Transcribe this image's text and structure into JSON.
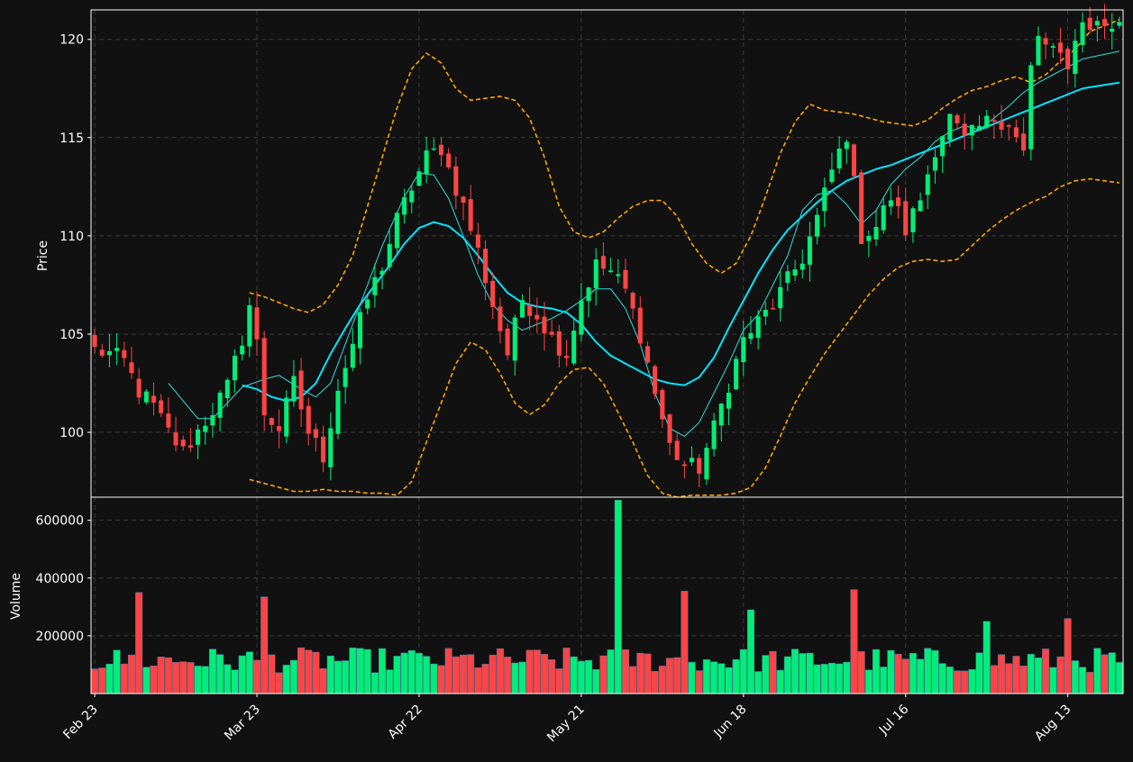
{
  "colors": {
    "background": "#111111",
    "up": "#00ee77",
    "down": "#ff4444",
    "grid": "#3a3a3a",
    "frame": "#ffffff",
    "ma_fast": "#33dddd",
    "ma_slow": "#00e5ff",
    "bands": "#ffa500"
  },
  "chart_data": {
    "type": "candlestick",
    "price_panel": {
      "ylabel": "Price",
      "ylim": [
        96.7,
        121.5
      ],
      "yticks": [
        100,
        105,
        110,
        115,
        120
      ],
      "grid": true
    },
    "volume_panel": {
      "ylabel": "Volume",
      "ylim": [
        0,
        680000
      ],
      "yticks": [
        200000,
        400000,
        600000
      ],
      "grid": true
    },
    "x_tick_labels": [
      "Feb 23",
      "Mar 23",
      "Apr 22",
      "May 21",
      "Jun 18",
      "Jul 16",
      "Aug 13"
    ],
    "x_tick_index": [
      0,
      22,
      44,
      66,
      88,
      110,
      132
    ],
    "n_bars": 140,
    "close_anchors": [
      [
        0,
        104.2
      ],
      [
        2,
        104.0
      ],
      [
        4,
        103.6
      ],
      [
        6,
        102.1
      ],
      [
        8,
        101.3
      ],
      [
        10,
        100.0
      ],
      [
        12,
        99.0
      ],
      [
        15,
        100.6
      ],
      [
        18,
        102.3
      ],
      [
        20,
        104.8
      ],
      [
        21,
        106.5
      ],
      [
        22,
        104.5
      ],
      [
        23,
        101.0
      ],
      [
        25,
        100.2
      ],
      [
        27,
        102.5
      ],
      [
        29,
        100.0
      ],
      [
        31,
        98.8
      ],
      [
        33,
        102.3
      ],
      [
        35,
        104.5
      ],
      [
        37,
        106.8
      ],
      [
        39,
        108.5
      ],
      [
        41,
        110.8
      ],
      [
        43,
        112.5
      ],
      [
        45,
        114.0
      ],
      [
        47,
        114.5
      ],
      [
        48,
        113.4
      ],
      [
        50,
        111.5
      ],
      [
        52,
        109.2
      ],
      [
        54,
        106.5
      ],
      [
        56,
        104.0
      ],
      [
        58,
        106.8
      ],
      [
        60,
        106.0
      ],
      [
        62,
        104.8
      ],
      [
        64,
        104.0
      ],
      [
        66,
        106.8
      ],
      [
        68,
        108.5
      ],
      [
        70,
        108.2
      ],
      [
        72,
        107.2
      ],
      [
        74,
        105.0
      ],
      [
        76,
        102.0
      ],
      [
        78,
        99.3
      ],
      [
        80,
        98.3
      ],
      [
        82,
        98.2
      ],
      [
        84,
        100.2
      ],
      [
        86,
        102.5
      ],
      [
        88,
        104.7
      ],
      [
        90,
        105.6
      ],
      [
        92,
        106.5
      ],
      [
        94,
        107.7
      ],
      [
        96,
        108.9
      ],
      [
        98,
        110.9
      ],
      [
        100,
        113.3
      ],
      [
        102,
        115.2
      ],
      [
        104,
        110.0
      ],
      [
        106,
        110.5
      ],
      [
        108,
        112.0
      ],
      [
        110,
        110.3
      ],
      [
        112,
        111.9
      ],
      [
        114,
        114.5
      ],
      [
        116,
        116.0
      ],
      [
        118,
        114.8
      ],
      [
        120,
        115.5
      ],
      [
        122,
        116.0
      ],
      [
        124,
        115.8
      ],
      [
        126,
        114.2
      ],
      [
        127,
        118.5
      ],
      [
        128,
        120.0
      ],
      [
        130,
        119.5
      ],
      [
        132,
        118.3
      ],
      [
        133,
        120.3
      ],
      [
        134,
        120.8
      ],
      [
        139,
        120.7
      ]
    ],
    "ma_fast_anchors": [
      [
        10,
        102.5
      ],
      [
        14,
        100.7
      ],
      [
        16,
        100.7
      ],
      [
        20,
        102.3
      ],
      [
        23,
        102.7
      ],
      [
        25,
        102.9
      ],
      [
        28,
        102.2
      ],
      [
        30,
        101.8
      ],
      [
        32,
        102.5
      ],
      [
        34,
        104.5
      ],
      [
        36,
        106.5
      ],
      [
        39,
        109.5
      ],
      [
        42,
        112.0
      ],
      [
        44,
        113.2
      ],
      [
        46,
        113.1
      ],
      [
        48,
        111.9
      ],
      [
        50,
        110.0
      ],
      [
        52,
        108.0
      ],
      [
        54,
        106.5
      ],
      [
        56,
        105.7
      ],
      [
        58,
        105.2
      ],
      [
        60,
        105.5
      ],
      [
        62,
        105.8
      ],
      [
        64,
        106.2
      ],
      [
        66,
        106.7
      ],
      [
        68,
        107.3
      ],
      [
        70,
        107.3
      ],
      [
        72,
        106.3
      ],
      [
        74,
        104.5
      ],
      [
        76,
        102.0
      ],
      [
        78,
        100.2
      ],
      [
        80,
        99.8
      ],
      [
        82,
        100.5
      ],
      [
        84,
        102.0
      ],
      [
        86,
        103.5
      ],
      [
        88,
        105.2
      ],
      [
        90,
        106.0
      ],
      [
        92,
        107.5
      ],
      [
        94,
        109.0
      ],
      [
        96,
        111.3
      ],
      [
        98,
        112.1
      ],
      [
        100,
        112.3
      ],
      [
        102,
        111.6
      ],
      [
        104,
        110.6
      ],
      [
        106,
        111.3
      ],
      [
        108,
        112.6
      ],
      [
        110,
        113.4
      ],
      [
        112,
        114.0
      ],
      [
        114,
        114.8
      ],
      [
        116,
        115.3
      ],
      [
        118,
        115.6
      ],
      [
        120,
        115.4
      ],
      [
        122,
        116.0
      ],
      [
        124,
        116.6
      ],
      [
        126,
        117.3
      ],
      [
        128,
        117.8
      ],
      [
        130,
        118.2
      ],
      [
        132,
        118.6
      ],
      [
        134,
        119.0
      ],
      [
        139,
        119.4
      ]
    ],
    "ma_slow_anchors": [
      [
        20,
        102.4
      ],
      [
        22,
        102.2
      ],
      [
        24,
        101.8
      ],
      [
        26,
        101.6
      ],
      [
        28,
        101.8
      ],
      [
        30,
        102.5
      ],
      [
        32,
        104.0
      ],
      [
        34,
        105.3
      ],
      [
        36,
        106.5
      ],
      [
        38,
        107.5
      ],
      [
        40,
        108.5
      ],
      [
        42,
        109.6
      ],
      [
        44,
        110.4
      ],
      [
        46,
        110.7
      ],
      [
        48,
        110.5
      ],
      [
        50,
        109.9
      ],
      [
        52,
        109.0
      ],
      [
        54,
        108.0
      ],
      [
        56,
        107.1
      ],
      [
        58,
        106.6
      ],
      [
        60,
        106.4
      ],
      [
        62,
        106.3
      ],
      [
        64,
        106.1
      ],
      [
        66,
        105.5
      ],
      [
        68,
        104.6
      ],
      [
        70,
        103.9
      ],
      [
        72,
        103.5
      ],
      [
        74,
        103.1
      ],
      [
        76,
        102.7
      ],
      [
        78,
        102.5
      ],
      [
        80,
        102.4
      ],
      [
        82,
        102.8
      ],
      [
        84,
        103.8
      ],
      [
        86,
        105.3
      ],
      [
        88,
        106.7
      ],
      [
        90,
        108.1
      ],
      [
        92,
        109.3
      ],
      [
        94,
        110.3
      ],
      [
        96,
        111.0
      ],
      [
        98,
        111.7
      ],
      [
        100,
        112.3
      ],
      [
        102,
        112.8
      ],
      [
        104,
        113.1
      ],
      [
        106,
        113.4
      ],
      [
        108,
        113.6
      ],
      [
        110,
        113.9
      ],
      [
        112,
        114.2
      ],
      [
        114,
        114.5
      ],
      [
        116,
        114.8
      ],
      [
        118,
        115.1
      ],
      [
        120,
        115.4
      ],
      [
        122,
        115.7
      ],
      [
        124,
        116.0
      ],
      [
        126,
        116.3
      ],
      [
        128,
        116.6
      ],
      [
        130,
        116.9
      ],
      [
        132,
        117.2
      ],
      [
        134,
        117.5
      ],
      [
        139,
        117.8
      ]
    ],
    "upper_band_anchors": [
      [
        21,
        107.1
      ],
      [
        23,
        106.9
      ],
      [
        25,
        106.6
      ],
      [
        27,
        106.3
      ],
      [
        29,
        106.1
      ],
      [
        31,
        106.5
      ],
      [
        33,
        107.5
      ],
      [
        35,
        109.0
      ],
      [
        37,
        111.5
      ],
      [
        39,
        114.0
      ],
      [
        41,
        116.5
      ],
      [
        43,
        118.5
      ],
      [
        45,
        119.3
      ],
      [
        47,
        118.8
      ],
      [
        49,
        117.5
      ],
      [
        51,
        116.9
      ],
      [
        53,
        117.0
      ],
      [
        55,
        117.1
      ],
      [
        57,
        116.9
      ],
      [
        59,
        116.0
      ],
      [
        61,
        114.0
      ],
      [
        63,
        111.5
      ],
      [
        65,
        110.2
      ],
      [
        67,
        109.9
      ],
      [
        69,
        110.2
      ],
      [
        71,
        110.9
      ],
      [
        73,
        111.5
      ],
      [
        75,
        111.8
      ],
      [
        77,
        111.8
      ],
      [
        79,
        111.0
      ],
      [
        81,
        109.6
      ],
      [
        83,
        108.6
      ],
      [
        85,
        108.1
      ],
      [
        87,
        108.6
      ],
      [
        89,
        110.0
      ],
      [
        91,
        112.0
      ],
      [
        93,
        114.2
      ],
      [
        95,
        115.8
      ],
      [
        97,
        116.7
      ],
      [
        99,
        116.4
      ],
      [
        101,
        116.3
      ],
      [
        103,
        116.2
      ],
      [
        105,
        116.0
      ],
      [
        107,
        115.8
      ],
      [
        109,
        115.7
      ],
      [
        111,
        115.6
      ],
      [
        113,
        115.9
      ],
      [
        115,
        116.5
      ],
      [
        117,
        117.0
      ],
      [
        119,
        117.4
      ],
      [
        121,
        117.6
      ],
      [
        123,
        117.9
      ],
      [
        125,
        118.1
      ],
      [
        127,
        117.8
      ],
      [
        129,
        118.2
      ],
      [
        131,
        118.9
      ],
      [
        133,
        119.5
      ],
      [
        135,
        120.4
      ],
      [
        139,
        121.0
      ]
    ],
    "lower_band_anchors": [
      [
        21,
        97.6
      ],
      [
        23,
        97.4
      ],
      [
        25,
        97.2
      ],
      [
        27,
        97.0
      ],
      [
        29,
        97.0
      ],
      [
        31,
        97.1
      ],
      [
        33,
        97.0
      ],
      [
        35,
        97.0
      ],
      [
        37,
        96.9
      ],
      [
        39,
        96.9
      ],
      [
        41,
        96.8
      ],
      [
        43,
        97.5
      ],
      [
        45,
        99.5
      ],
      [
        47,
        101.5
      ],
      [
        49,
        103.5
      ],
      [
        51,
        104.6
      ],
      [
        53,
        104.2
      ],
      [
        55,
        103.0
      ],
      [
        57,
        101.5
      ],
      [
        59,
        100.9
      ],
      [
        61,
        101.4
      ],
      [
        63,
        102.5
      ],
      [
        65,
        103.2
      ],
      [
        67,
        103.3
      ],
      [
        69,
        102.5
      ],
      [
        71,
        101.0
      ],
      [
        73,
        99.5
      ],
      [
        75,
        97.8
      ],
      [
        77,
        96.9
      ],
      [
        79,
        96.7
      ],
      [
        81,
        96.8
      ],
      [
        83,
        96.8
      ],
      [
        85,
        96.8
      ],
      [
        87,
        96.9
      ],
      [
        89,
        97.2
      ],
      [
        91,
        98.2
      ],
      [
        93,
        99.8
      ],
      [
        95,
        101.5
      ],
      [
        97,
        102.8
      ],
      [
        99,
        104.0
      ],
      [
        101,
        105.0
      ],
      [
        103,
        106.0
      ],
      [
        105,
        107.0
      ],
      [
        107,
        107.8
      ],
      [
        109,
        108.4
      ],
      [
        111,
        108.7
      ],
      [
        113,
        108.8
      ],
      [
        115,
        108.7
      ],
      [
        117,
        108.8
      ],
      [
        119,
        109.5
      ],
      [
        121,
        110.2
      ],
      [
        123,
        110.8
      ],
      [
        125,
        111.3
      ],
      [
        127,
        111.7
      ],
      [
        129,
        112.0
      ],
      [
        131,
        112.5
      ],
      [
        133,
        112.8
      ],
      [
        135,
        112.9
      ],
      [
        139,
        112.7
      ]
    ],
    "volume_spikes": [
      [
        6,
        350000
      ],
      [
        23,
        335000
      ],
      [
        44,
        140000
      ],
      [
        71,
        670000
      ],
      [
        80,
        355000
      ],
      [
        89,
        290000
      ],
      [
        103,
        360000
      ],
      [
        121,
        250000
      ],
      [
        132,
        260000
      ]
    ],
    "volume_base": 110000,
    "series": [
      {
        "type": "candles"
      },
      {
        "type": "line",
        "role": "fast moving average"
      },
      {
        "type": "line",
        "role": "slow moving average"
      },
      {
        "type": "dashed-line",
        "role": "upper band"
      },
      {
        "type": "dashed-line",
        "role": "lower band"
      },
      {
        "type": "bar",
        "role": "volume"
      }
    ]
  }
}
